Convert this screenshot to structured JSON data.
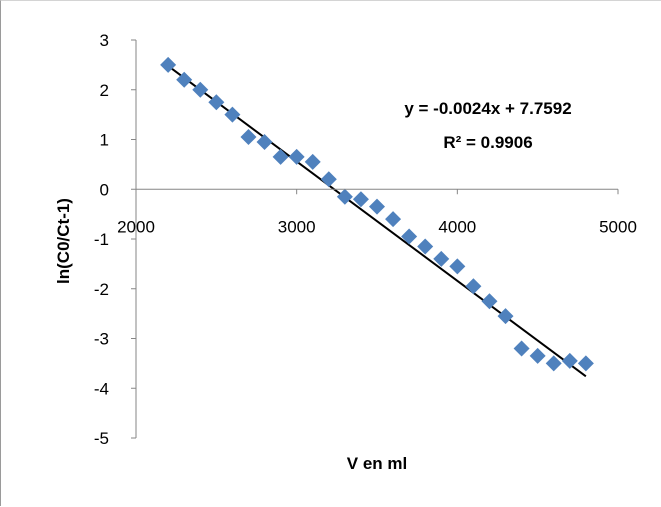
{
  "chart_data": {
    "type": "scatter",
    "title": "",
    "xlabel": "V en ml",
    "ylabel": "ln(C0/Ct-1)",
    "xlim": [
      2000,
      5000
    ],
    "ylim": [
      -5,
      3
    ],
    "x_ticks": [
      "2000",
      "3000",
      "4000",
      "5000"
    ],
    "y_ticks": [
      "3",
      "2",
      "1",
      "0",
      "-1",
      "-2",
      "-3",
      "-4",
      "-5"
    ],
    "grid": false,
    "legend": "none",
    "marker": "diamond",
    "marker_color": "#4f81bd",
    "trendline_color": "#000000",
    "series": [
      {
        "x": [
          2200,
          2300,
          2400,
          2500,
          2600,
          2700,
          2800,
          2900,
          3000,
          3100,
          3200,
          3300,
          3400,
          3500,
          3600,
          3700,
          3800,
          3900,
          4000,
          4100,
          4200,
          4300,
          4400,
          4500,
          4600,
          4700,
          4800
        ],
        "y": [
          2.5,
          2.2,
          2.0,
          1.75,
          1.5,
          1.05,
          0.95,
          0.65,
          0.65,
          0.55,
          0.2,
          -0.15,
          -0.2,
          -0.35,
          -0.6,
          -0.95,
          -1.15,
          -1.4,
          -1.55,
          -1.95,
          -2.25,
          -2.55,
          -3.2,
          -3.35,
          -3.5,
          -3.45,
          -3.5
        ]
      }
    ],
    "trendline": {
      "type": "linear",
      "slope": -0.0024,
      "intercept": 7.7592,
      "x_range": [
        2200,
        4800
      ],
      "equation": "y = -0.0024x + 7.7592",
      "r_squared": "R² = 0.9906"
    }
  }
}
